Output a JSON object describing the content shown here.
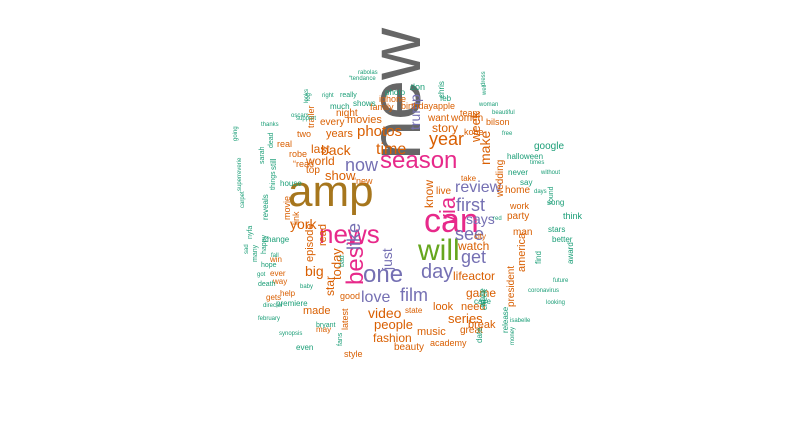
{
  "wordcloud": {
    "palette": {
      "gray": "#666666",
      "gold": "#a6761d",
      "magenta": "#e7298a",
      "green": "#66a61e",
      "purple": "#7570b3",
      "orange": "#d95f02",
      "teal": "#1b9e77",
      "yellow": "#e6ab02"
    },
    "words": [
      {
        "text": "new",
        "color": "gray"
      },
      {
        "text": "amp",
        "color": "gold"
      },
      {
        "text": "can",
        "color": "magenta"
      },
      {
        "text": "news",
        "color": "magenta"
      },
      {
        "text": "season",
        "color": "magenta"
      },
      {
        "text": "will",
        "color": "green"
      },
      {
        "text": "best",
        "color": "magenta"
      },
      {
        "text": "one",
        "color": "purple"
      },
      {
        "text": "via",
        "color": "magenta"
      },
      {
        "text": "first",
        "color": "purple"
      },
      {
        "text": "day",
        "color": "purple"
      },
      {
        "text": "film",
        "color": "purple"
      },
      {
        "text": "now",
        "color": "purple"
      },
      {
        "text": "like",
        "color": "purple"
      },
      {
        "text": "just",
        "color": "purple"
      },
      {
        "text": "love",
        "color": "purple"
      },
      {
        "text": "review",
        "color": "purple"
      },
      {
        "text": "get",
        "color": "purple"
      },
      {
        "text": "see",
        "color": "purple"
      },
      {
        "text": "says",
        "color": "purple"
      },
      {
        "text": "year",
        "color": "orange"
      },
      {
        "text": "trump",
        "color": "purple"
      },
      {
        "text": "time",
        "color": "orange"
      },
      {
        "text": "photos",
        "color": "orange"
      },
      {
        "text": "video",
        "color": "orange"
      },
      {
        "text": "people",
        "color": "orange"
      },
      {
        "text": "today",
        "color": "orange"
      },
      {
        "text": "york",
        "color": "orange"
      },
      {
        "text": "make",
        "color": "orange"
      },
      {
        "text": "week",
        "color": "orange"
      },
      {
        "text": "know",
        "color": "orange"
      },
      {
        "text": "back",
        "color": "orange"
      },
      {
        "text": "show",
        "color": "orange"
      },
      {
        "text": "series",
        "color": "orange"
      },
      {
        "text": "watch",
        "color": "orange"
      },
      {
        "text": "story",
        "color": "orange"
      },
      {
        "text": "big",
        "color": "orange"
      },
      {
        "text": "episode",
        "color": "orange"
      },
      {
        "text": "read",
        "color": "orange"
      },
      {
        "text": "star",
        "color": "orange"
      },
      {
        "text": "lifeactor",
        "color": "orange"
      },
      {
        "text": "game",
        "color": "orange"
      },
      {
        "text": "fashion",
        "color": "orange"
      },
      {
        "text": "music",
        "color": "orange"
      },
      {
        "text": "look",
        "color": "orange"
      },
      {
        "text": "need",
        "color": "orange"
      },
      {
        "text": "break",
        "color": "orange"
      },
      {
        "text": "made",
        "color": "orange"
      },
      {
        "text": "years",
        "color": "orange"
      },
      {
        "text": "last",
        "color": "orange"
      },
      {
        "text": "world",
        "color": "orange"
      },
      {
        "text": "movies",
        "color": "orange"
      },
      {
        "text": "night",
        "color": "orange"
      },
      {
        "text": "every",
        "color": "orange"
      },
      {
        "text": "top",
        "color": "orange"
      },
      {
        "text": "live",
        "color": "orange"
      },
      {
        "text": "want",
        "color": "orange"
      },
      {
        "text": "women",
        "color": "orange"
      },
      {
        "text": "wedding",
        "color": "orange"
      },
      {
        "text": "america",
        "color": "orange"
      },
      {
        "text": "man",
        "color": "orange"
      },
      {
        "text": "president",
        "color": "orange"
      },
      {
        "text": "party",
        "color": "orange"
      },
      {
        "text": "home",
        "color": "orange"
      },
      {
        "text": "great",
        "color": "orange"
      },
      {
        "text": "beauty",
        "color": "orange"
      },
      {
        "text": "academy",
        "color": "orange"
      },
      {
        "text": "latest",
        "color": "orange"
      },
      {
        "text": "good",
        "color": "orange"
      },
      {
        "text": "style",
        "color": "orange"
      },
      {
        "text": "birthday",
        "color": "orange"
      },
      {
        "text": "family",
        "color": "orange"
      },
      {
        "text": "iphone",
        "color": "orange"
      },
      {
        "text": "apple",
        "color": "orange"
      },
      {
        "text": "team",
        "color": "orange"
      },
      {
        "text": "kobe",
        "color": "orange"
      },
      {
        "text": "take",
        "color": "orange"
      },
      {
        "text": "city",
        "color": "orange"
      },
      {
        "text": "state",
        "color": "orange"
      },
      {
        "text": "work",
        "color": "orange"
      },
      {
        "text": "“new",
        "color": "orange"
      },
      {
        "text": "“read",
        "color": "orange"
      },
      {
        "text": "real",
        "color": "orange"
      },
      {
        "text": "robe",
        "color": "orange"
      },
      {
        "text": "two",
        "color": "orange"
      },
      {
        "text": "trailer",
        "color": "orange"
      },
      {
        "text": "link",
        "color": "orange"
      },
      {
        "text": "movie",
        "color": "orange"
      },
      {
        "text": "way",
        "color": "orange"
      },
      {
        "text": "ever",
        "color": "orange"
      },
      {
        "text": "win",
        "color": "orange"
      },
      {
        "text": "help",
        "color": "orange"
      },
      {
        "text": "may",
        "color": "orange"
      },
      {
        "text": "gets",
        "color": "orange"
      },
      {
        "text": "bilson",
        "color": "orange"
      },
      {
        "text": "google",
        "color": "teal"
      },
      {
        "text": "halloween",
        "color": "teal"
      },
      {
        "text": "never",
        "color": "teal"
      },
      {
        "text": "say",
        "color": "teal"
      },
      {
        "text": "think",
        "color": "teal"
      },
      {
        "text": "stars",
        "color": "teal"
      },
      {
        "text": "better",
        "color": "teal"
      },
      {
        "text": "song",
        "color": "teal"
      },
      {
        "text": "found",
        "color": "teal"
      },
      {
        "text": "award",
        "color": "teal"
      },
      {
        "text": "find",
        "color": "teal"
      },
      {
        "text": "release",
        "color": "teal"
      },
      {
        "text": "check",
        "color": "teal"
      },
      {
        "text": "white",
        "color": "teal"
      },
      {
        "text": "date",
        "color": "teal"
      },
      {
        "text": "case",
        "color": "teal"
      },
      {
        "text": "feb",
        "color": "teal"
      },
      {
        "text": "don",
        "color": "teal"
      },
      {
        "text": "chris",
        "color": "teal"
      },
      {
        "text": "photo",
        "color": "teal"
      },
      {
        "text": "much",
        "color": "teal"
      },
      {
        "text": "shows",
        "color": "teal"
      },
      {
        "text": "really",
        "color": "teal"
      },
      {
        "text": "right",
        "color": "teal"
      },
      {
        "text": "“tendance",
        "color": "teal"
      },
      {
        "text": "rabolas",
        "color": "teal"
      },
      {
        "text": "beautiful",
        "color": "teal"
      },
      {
        "text": "woman",
        "color": "teal"
      },
      {
        "text": "free",
        "color": "teal"
      },
      {
        "text": "times",
        "color": "teal"
      },
      {
        "text": "without",
        "color": "teal"
      },
      {
        "text": "days",
        "color": "teal"
      },
      {
        "text": "coronavirus",
        "color": "teal"
      },
      {
        "text": "future",
        "color": "teal"
      },
      {
        "text": "looking",
        "color": "teal"
      },
      {
        "text": "isabelle",
        "color": "teal"
      },
      {
        "text": "money",
        "color": "teal"
      },
      {
        "text": "even",
        "color": "teal"
      },
      {
        "text": "bryant",
        "color": "teal"
      },
      {
        "text": "february",
        "color": "teal"
      },
      {
        "text": "synopsis",
        "color": "teal"
      },
      {
        "text": "director",
        "color": "teal"
      },
      {
        "text": "premiere",
        "color": "teal"
      },
      {
        "text": "baby",
        "color": "teal"
      },
      {
        "text": "got",
        "color": "teal"
      },
      {
        "text": "death",
        "color": "teal"
      },
      {
        "text": "hope",
        "color": "teal"
      },
      {
        "text": "many",
        "color": "teal"
      },
      {
        "text": "happy",
        "color": "teal"
      },
      {
        "text": "change",
        "color": "teal"
      },
      {
        "text": "reveals",
        "color": "teal"
      },
      {
        "text": "house",
        "color": "teal"
      },
      {
        "text": "things",
        "color": "teal"
      },
      {
        "text": "still",
        "color": "teal"
      },
      {
        "text": "sarah",
        "color": "teal"
      },
      {
        "text": "going",
        "color": "teal"
      },
      {
        "text": "superreverie",
        "color": "teal"
      },
      {
        "text": "carpet",
        "color": "teal"
      },
      {
        "text": "thanks",
        "color": "teal"
      },
      {
        "text": "support",
        "color": "teal"
      },
      {
        "text": "looks",
        "color": "teal"
      },
      {
        "text": "dead",
        "color": "teal"
      },
      {
        "text": "oscars",
        "color": "teal"
      },
      {
        "text": "fall",
        "color": "teal"
      },
      {
        "text": "bad",
        "color": "teal"
      },
      {
        "text": "red",
        "color": "teal"
      },
      {
        "text": "fans",
        "color": "teal"
      },
      {
        "text": "well",
        "color": "teal"
      },
      {
        "text": "sad",
        "color": "teal"
      },
      {
        "text": "nyfa",
        "color": "teal"
      },
      {
        "text": "log",
        "color": "teal"
      },
      {
        "text": "dress",
        "color": "teal"
      },
      {
        "text": "apl",
        "color": "teal"
      }
    ]
  }
}
